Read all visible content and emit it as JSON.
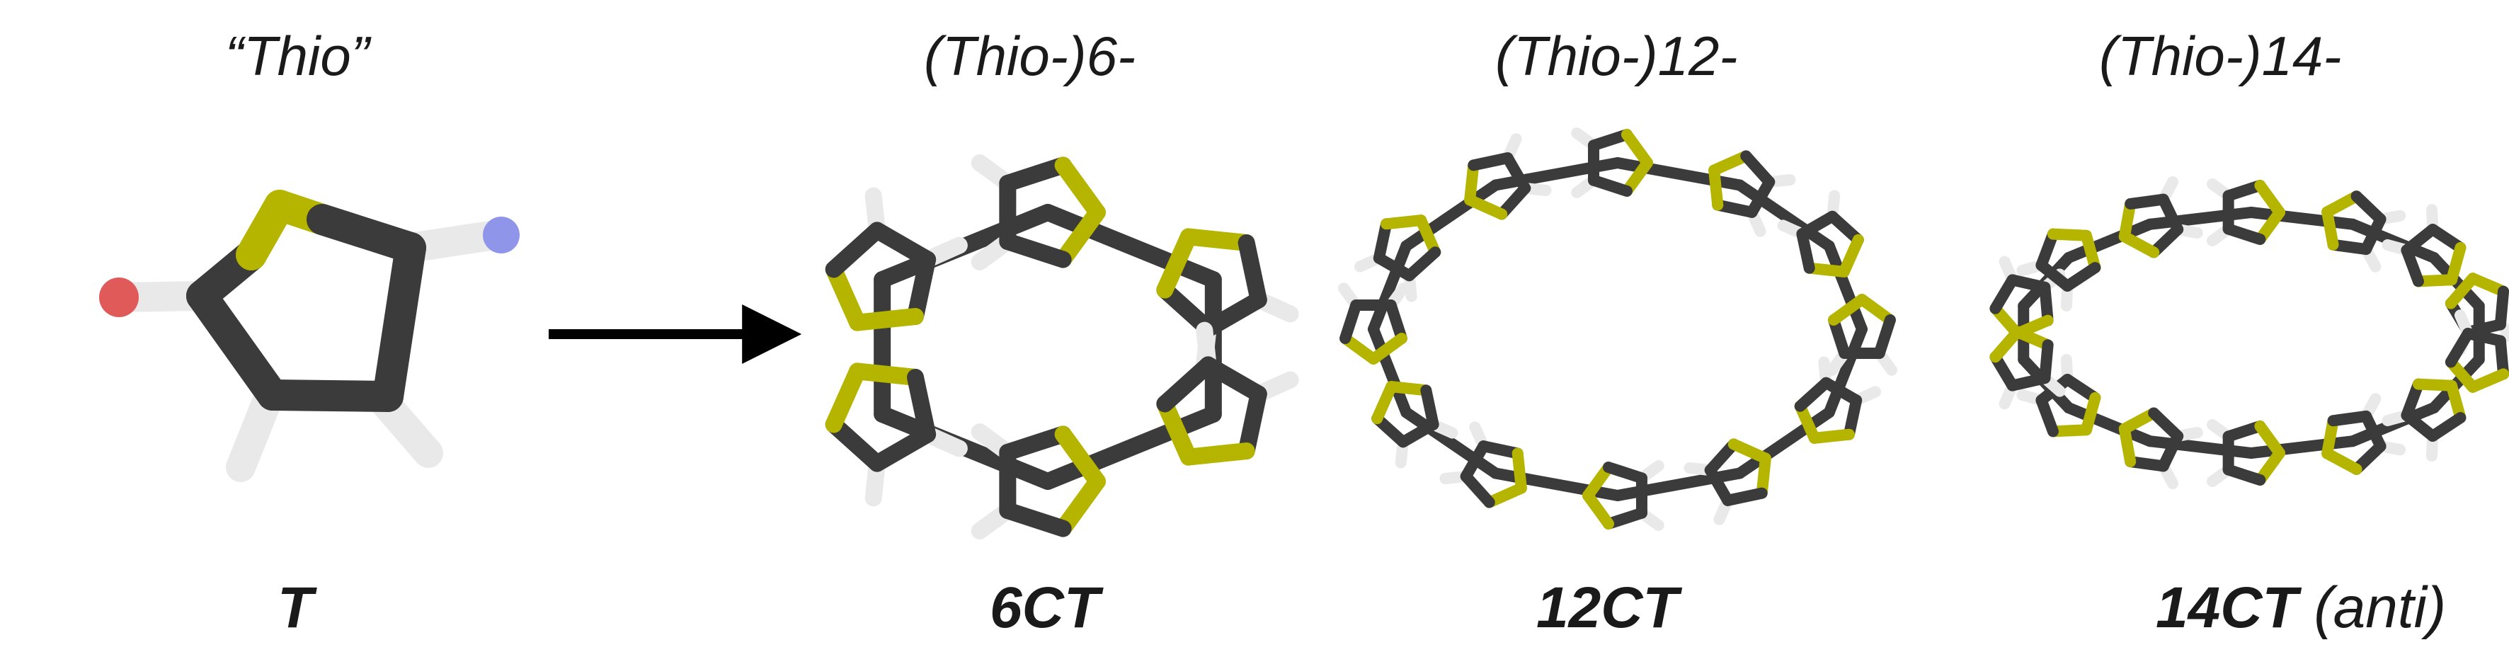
{
  "labels": {
    "thio_top": "“Thio”",
    "hex_top": "(Thio-)6-",
    "dodec_top": "(Thio-)12-",
    "tetradec_top": "(Thio-)14-",
    "thio_bottom": "T",
    "hex_bottom": "6CT",
    "dodec_bottom": "12CT",
    "tetradec_bottom": "14CT",
    "tetradec_note": "(anti)"
  },
  "colors": {
    "carbon": "#3b3b3b",
    "sulfur": "#b5b500",
    "hydrogen": "#e9e9e9",
    "oxygen_end": "#e05a5a",
    "nitrogen_end": "#8f95e8",
    "arrow": "#000000"
  }
}
